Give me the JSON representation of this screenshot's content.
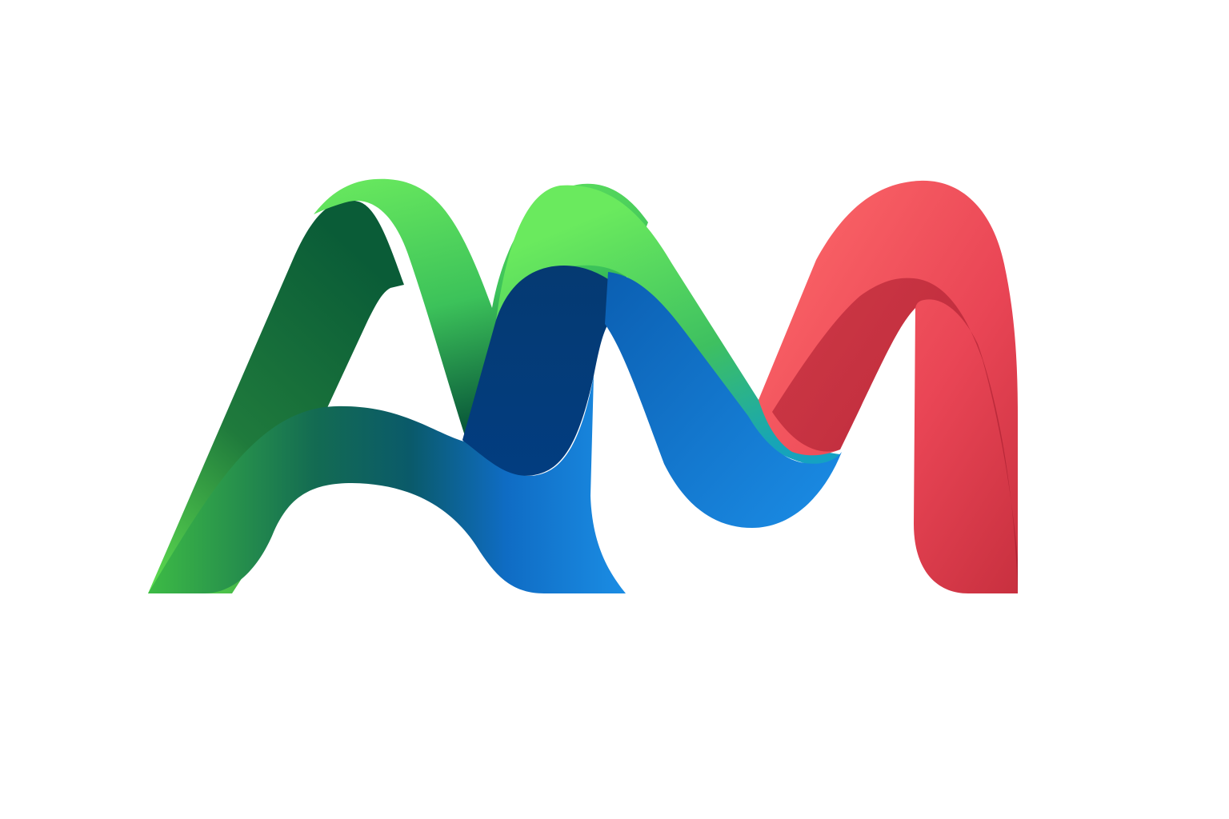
{
  "logo": {
    "lettering": "AM",
    "colors": {
      "green_light": "#66e35a",
      "green_mid": "#3fbf4a",
      "green_dark": "#085a38",
      "blue_light": "#1b8de4",
      "blue_mid": "#0f6cc4",
      "blue_dark": "#033a74",
      "teal": "#159fbf",
      "red_light": "#ff6a6a",
      "red_mid": "#ee4c58",
      "red_dark": "#b82637"
    }
  }
}
